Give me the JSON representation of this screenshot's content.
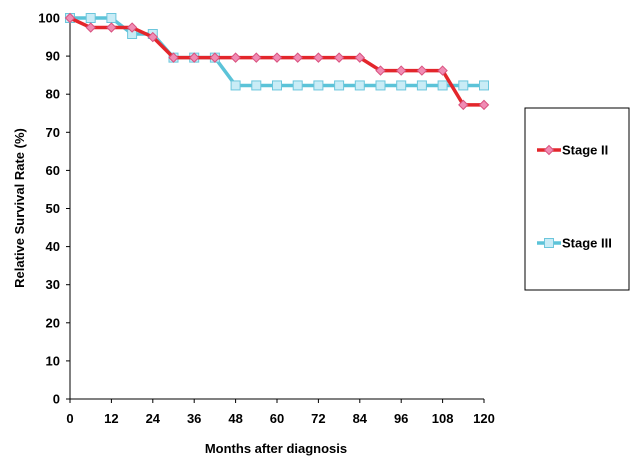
{
  "chart_data": {
    "type": "line",
    "xlabel": "Months after diagnosis",
    "ylabel": "Relative Survival Rate (%)",
    "xlim": [
      0,
      120
    ],
    "ylim": [
      0,
      100
    ],
    "xticks": [
      0,
      12,
      24,
      36,
      48,
      60,
      72,
      84,
      96,
      108,
      120
    ],
    "yticks": [
      0,
      10,
      20,
      30,
      40,
      50,
      60,
      70,
      80,
      90,
      100
    ],
    "x": [
      0,
      6,
      12,
      18,
      24,
      30,
      36,
      42,
      48,
      54,
      60,
      66,
      72,
      78,
      84,
      90,
      96,
      102,
      108,
      114,
      120
    ],
    "grid": false,
    "legend_position": "right",
    "series": [
      {
        "name": "Stage II",
        "color": "#e3262b",
        "marker_fill": "#f08cb4",
        "marker_stroke": "#d9527f",
        "marker": "diamond",
        "values": [
          100,
          97.5,
          97.5,
          97.5,
          95,
          89.6,
          89.6,
          89.6,
          89.6,
          89.6,
          89.6,
          89.6,
          89.6,
          89.6,
          89.6,
          86.2,
          86.2,
          86.2,
          86.2,
          77.2,
          77.2
        ]
      },
      {
        "name": "Stage III",
        "color": "#5bc3d8",
        "marker_fill": "#c9ecf6",
        "marker_stroke": "#6cc6dc",
        "marker": "square",
        "values": [
          100,
          100,
          100,
          95.8,
          95.8,
          89.6,
          89.6,
          89.6,
          82.3,
          82.3,
          82.3,
          82.3,
          82.3,
          82.3,
          82.3,
          82.3,
          82.3,
          82.3,
          82.3,
          82.3,
          82.3
        ]
      }
    ]
  }
}
